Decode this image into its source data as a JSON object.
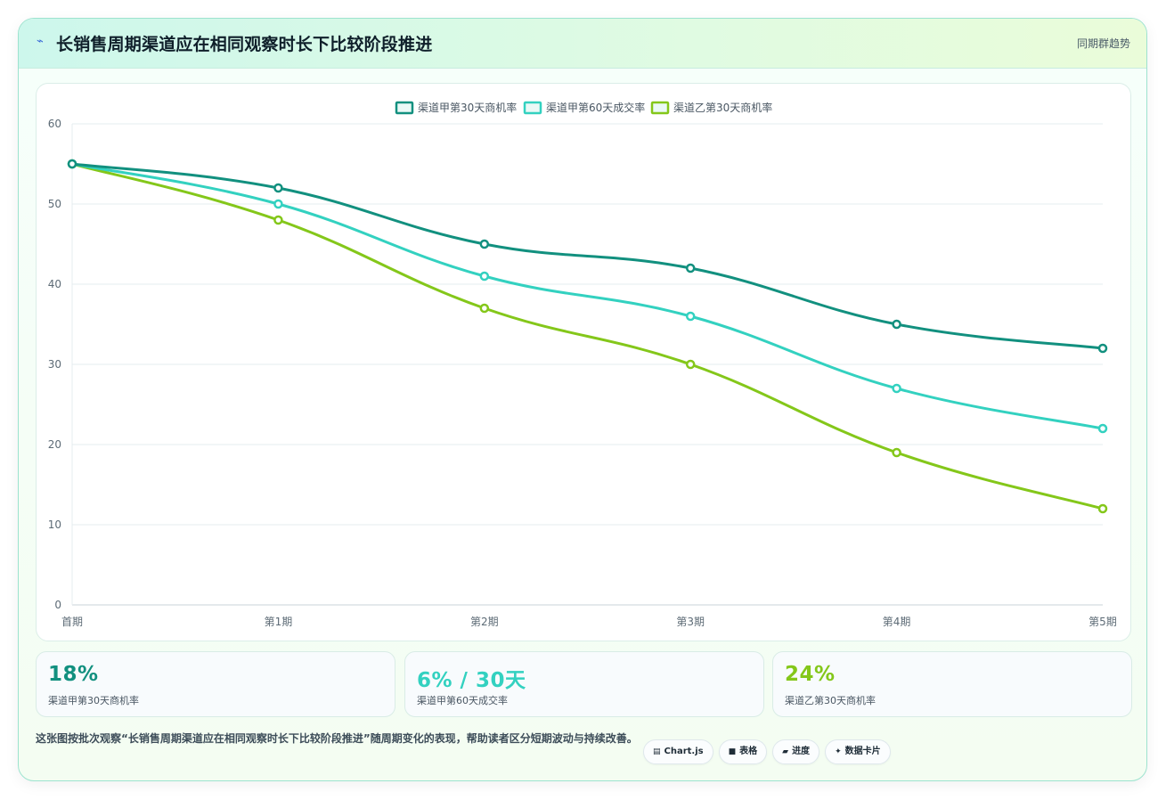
{
  "header": {
    "icon": "lightning-icon",
    "title": "长销售周期渠道应在相同观察时长下比较阶段推进",
    "tag": "同期群趋势"
  },
  "colors": {
    "series1": "#12907f",
    "series2": "#33d1c0",
    "series3": "#84c71a"
  },
  "chart_data": {
    "type": "line",
    "categories": [
      "首期",
      "第1期",
      "第2期",
      "第3期",
      "第4期",
      "第5期"
    ],
    "series": [
      {
        "name": "渠道甲第30天商机率",
        "values": [
          55,
          52,
          45,
          42,
          35,
          32
        ]
      },
      {
        "name": "渠道甲第60天成交率",
        "values": [
          55,
          50,
          41,
          36,
          27,
          22
        ]
      },
      {
        "name": "渠道乙第30天商机率",
        "values": [
          55,
          48,
          37,
          30,
          19,
          12
        ]
      }
    ],
    "ylim": [
      0,
      60
    ],
    "yticks": [
      0,
      10,
      20,
      30,
      40,
      50,
      60
    ],
    "grid": true,
    "legend": "top-center"
  },
  "kpis": [
    {
      "value": "18%",
      "label": "渠道甲第30天商机率"
    },
    {
      "value": "6% / 30天",
      "label": "渠道甲第60天成交率"
    },
    {
      "value": "24%",
      "label": "渠道乙第30天商机率"
    }
  ],
  "description": "这张图按批次观察“长销售周期渠道应在相同观察时长下比较阶段推进”随周期变化的表现，帮助读者区分短期波动与持续改善。",
  "pills": [
    {
      "icon": "chart-icon",
      "glyph": "▤",
      "label": "Chart.js"
    },
    {
      "icon": "table-icon",
      "glyph": "■",
      "label": "表格"
    },
    {
      "icon": "progress-icon",
      "glyph": "▰",
      "label": "进度"
    },
    {
      "icon": "sparkle-icon",
      "glyph": "✦",
      "label": "数据卡片"
    }
  ]
}
